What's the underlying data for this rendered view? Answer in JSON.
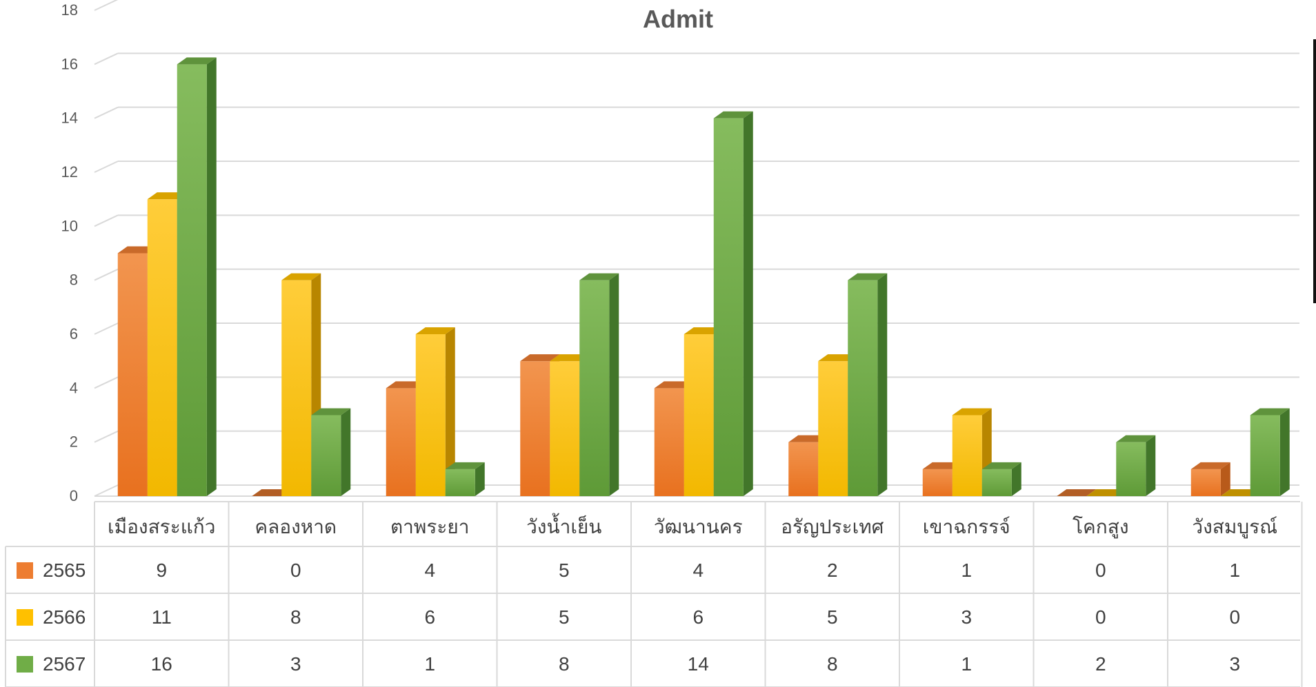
{
  "chart_data": {
    "type": "bar",
    "title": "Admit",
    "categories": [
      "เมืองสระแก้ว",
      "คลองหาด",
      "ตาพระยา",
      "วังน้ำเย็น",
      "วัฒนานคร",
      "อรัญประเทศ",
      "เขาฉกรรจ์",
      "โคกสูง",
      "วังสมบูรณ์"
    ],
    "series": [
      {
        "name": "2565",
        "values": [
          9,
          0,
          4,
          5,
          4,
          2,
          1,
          0,
          1
        ],
        "color": "#ED7D31",
        "dark": "#B85A1A"
      },
      {
        "name": "2566",
        "values": [
          11,
          8,
          6,
          5,
          6,
          5,
          3,
          0,
          0
        ],
        "color": "#FFC000",
        "dark": "#B88600"
      },
      {
        "name": "2567",
        "values": [
          16,
          3,
          1,
          8,
          14,
          8,
          1,
          2,
          3
        ],
        "color": "#70AD47",
        "dark": "#42762A"
      }
    ],
    "ylim": [
      0,
      18
    ],
    "yticks": [
      0,
      2,
      4,
      6,
      8,
      10,
      12,
      14,
      16,
      18
    ],
    "grid": true,
    "legend": "data-table",
    "xlabel": "",
    "ylabel": ""
  }
}
